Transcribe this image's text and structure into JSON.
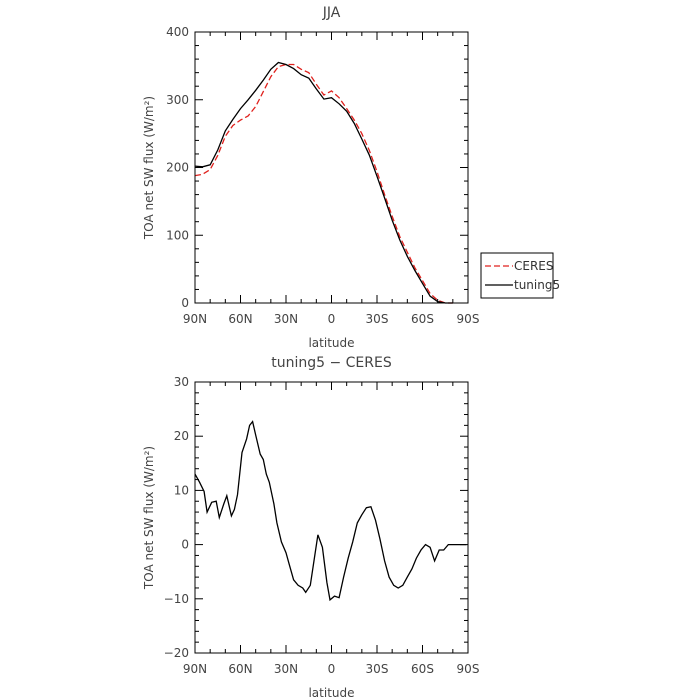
{
  "chart_data": [
    {
      "type": "line",
      "title": "JJA",
      "xlabel": "latitude",
      "ylabel": "TOA net SW flux (W/m²)",
      "xlim": [
        90,
        -90
      ],
      "ylim": [
        0,
        400
      ],
      "xticks": [
        90,
        60,
        30,
        0,
        -30,
        -60,
        -90
      ],
      "xtick_labels": [
        "90N",
        "60N",
        "30N",
        "0",
        "30S",
        "60S",
        "90S"
      ],
      "yticks": [
        0,
        100,
        200,
        300,
        400
      ],
      "ytick_labels": [
        "0",
        "100",
        "200",
        "300",
        "400"
      ],
      "legend_position": "right, outside plot",
      "series": [
        {
          "name": "CERES",
          "color": "#e0221e",
          "dash": "dashed",
          "x": [
            90,
            85,
            80,
            75,
            70,
            65,
            60,
            55,
            50,
            45,
            40,
            35,
            30,
            25,
            20,
            15,
            10,
            5,
            0,
            -5,
            -10,
            -15,
            -20,
            -25,
            -30,
            -35,
            -40,
            -45,
            -50,
            -55,
            -60,
            -65,
            -70,
            -75,
            -80
          ],
          "y": [
            188,
            190,
            197,
            218,
            246,
            262,
            270,
            276,
            290,
            312,
            334,
            349,
            352,
            352,
            345,
            340,
            323,
            307,
            313,
            303,
            287,
            270,
            250,
            225,
            194,
            160,
            128,
            98,
            75,
            52,
            33,
            14,
            4,
            0,
            0
          ]
        },
        {
          "name": "tuning5",
          "color": "#000000",
          "dash": "solid",
          "x": [
            90,
            85,
            80,
            75,
            70,
            65,
            60,
            55,
            50,
            45,
            40,
            35,
            30,
            25,
            20,
            15,
            10,
            5,
            0,
            -5,
            -10,
            -15,
            -20,
            -25,
            -30,
            -35,
            -40,
            -45,
            -50,
            -55,
            -60,
            -65,
            -70,
            -75,
            -80
          ],
          "y": [
            202,
            201,
            204,
            226,
            254,
            271,
            287,
            300,
            314,
            329,
            345,
            355,
            352,
            346,
            337,
            332,
            316,
            301,
            303,
            294,
            283,
            265,
            242,
            218,
            187,
            155,
            122,
            93,
            69,
            48,
            29,
            10,
            2,
            0,
            0
          ]
        }
      ]
    },
    {
      "type": "line",
      "title": "tuning5 − CERES",
      "xlabel": "latitude",
      "ylabel": "TOA net SW flux (W/m²)",
      "xlim": [
        90,
        -90
      ],
      "ylim": [
        -20,
        30
      ],
      "xticks": [
        90,
        60,
        30,
        0,
        -30,
        -60,
        -90
      ],
      "xtick_labels": [
        "90N",
        "60N",
        "30N",
        "0",
        "30S",
        "60S",
        "90S"
      ],
      "yticks": [
        -20,
        -10,
        0,
        10,
        20,
        30
      ],
      "ytick_labels": [
        "−20",
        "−10",
        "0",
        "10",
        "20",
        "30"
      ],
      "series": [
        {
          "color": "#000000",
          "dash": "solid",
          "x": [
            90,
            87,
            84,
            82,
            79,
            76,
            74,
            71,
            69,
            66,
            64,
            62,
            59,
            56,
            54,
            52,
            50,
            47,
            45,
            43,
            41,
            38,
            36,
            33,
            30,
            28,
            25,
            22,
            19,
            17,
            14,
            11,
            9,
            6,
            3,
            1,
            -2,
            -5,
            -8,
            -11,
            -14,
            -17,
            -20,
            -23,
            -26,
            -29,
            -32,
            -35,
            -38,
            -41,
            -44,
            -47,
            -50,
            -53,
            -56,
            -59,
            -62,
            -65,
            -68,
            -71,
            -74,
            -77,
            -80,
            -83,
            -86,
            -89
          ],
          "y": [
            13,
            11.5,
            9.8,
            6,
            7.8,
            8,
            5,
            7.5,
            9,
            5.3,
            6.5,
            9.2,
            17,
            19.5,
            22,
            22.7,
            20.2,
            16.7,
            15.7,
            13,
            11.5,
            7.5,
            4,
            0.5,
            -1.5,
            -3.5,
            -6.5,
            -7.5,
            -8,
            -8.8,
            -7.5,
            -2,
            1.8,
            -0.5,
            -7,
            -10.2,
            -9.5,
            -9.8,
            -6,
            -2.5,
            0.5,
            4,
            5.5,
            6.8,
            7,
            4.5,
            1,
            -3,
            -6,
            -7.5,
            -8,
            -7.5,
            -6,
            -4.5,
            -2.5,
            -1,
            0,
            -0.5,
            -3,
            -1,
            -1,
            0,
            0,
            0,
            0,
            0
          ]
        }
      ]
    }
  ]
}
